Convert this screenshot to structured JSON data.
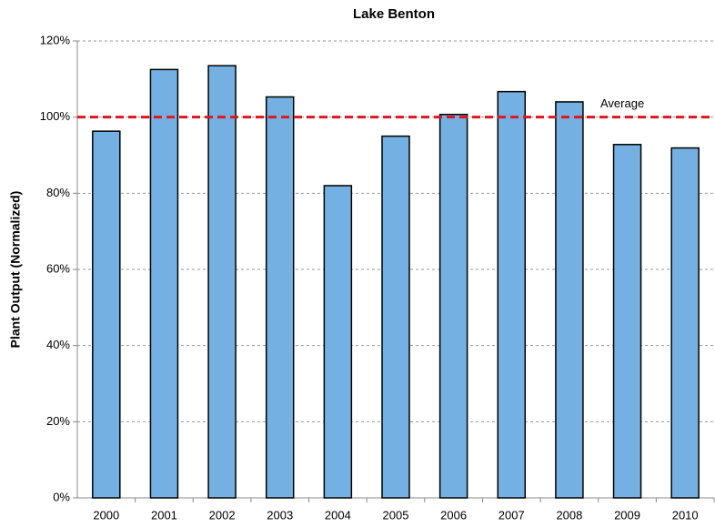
{
  "chart_data": {
    "type": "bar",
    "title": "Lake Benton",
    "y_label": "Plant Output (Normalized)",
    "categories": [
      "2000",
      "2001",
      "2002",
      "2003",
      "2004",
      "2005",
      "2006",
      "2007",
      "2008",
      "2009",
      "2010"
    ],
    "values": [
      96.3,
      112.5,
      113.5,
      105.3,
      82,
      95,
      100.7,
      106.7,
      104,
      92.8,
      91.9
    ],
    "color": "#74b1e2",
    "ylim": [
      0,
      120
    ],
    "yticks": [
      {
        "value": 0,
        "label": "0%"
      },
      {
        "value": 20,
        "label": "20%"
      },
      {
        "value": 40,
        "label": "40%"
      },
      {
        "value": 60,
        "label": "60%"
      },
      {
        "value": 80,
        "label": "80%"
      },
      {
        "value": 100,
        "label": "100%"
      },
      {
        "value": 120,
        "label": "120%"
      }
    ],
    "grid": true,
    "reference_lines": [
      {
        "value": 100,
        "label": "Average",
        "color": "#e0161e"
      }
    ]
  }
}
